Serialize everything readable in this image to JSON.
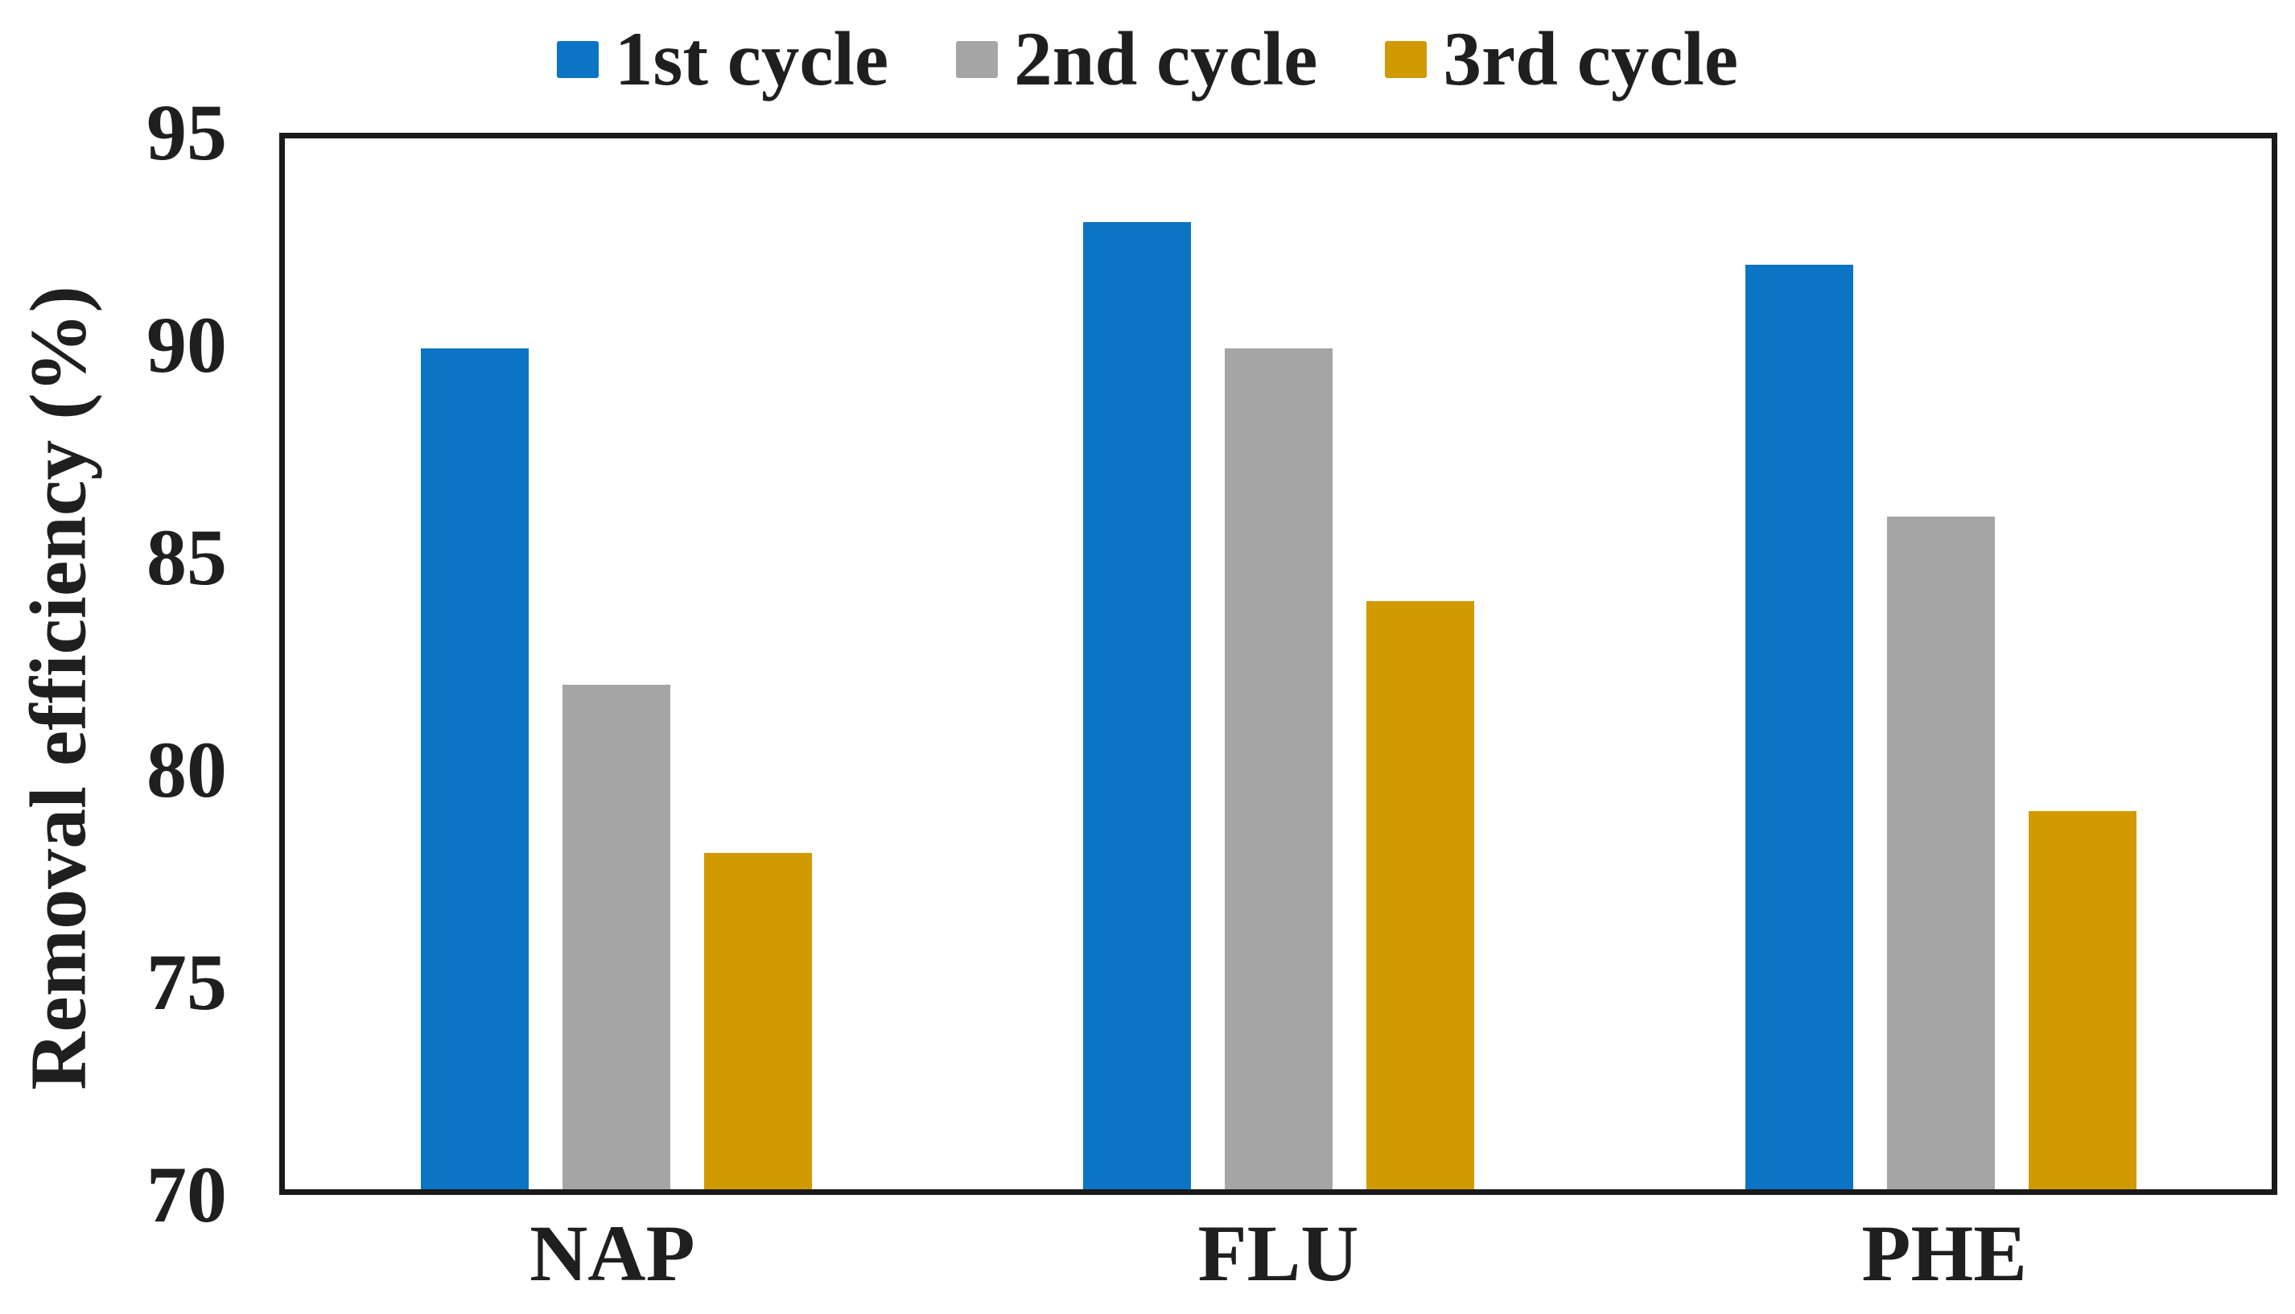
{
  "chart_data": {
    "type": "bar",
    "title": "",
    "xlabel": "",
    "ylabel": "Removal efficiency (%)",
    "ylim": [
      70,
      95
    ],
    "yticks": [
      70,
      75,
      80,
      85,
      90,
      95
    ],
    "grid": false,
    "legend_position": "top",
    "frame_color": "#1A1A1A",
    "text_color": "#1F1F1F",
    "background_color": "#FFFFFF",
    "categories": [
      "NAP",
      "FLU",
      "PHE"
    ],
    "series": [
      {
        "name": "1st cycle",
        "color": "#0B74C4",
        "values": [
          90,
          93,
          92
        ]
      },
      {
        "name": "2nd cycle",
        "color": "#A5A5A5",
        "values": [
          82,
          90,
          86
        ]
      },
      {
        "name": "3rd cycle",
        "color": "#D09A00",
        "values": [
          78,
          84,
          79
        ]
      }
    ]
  }
}
